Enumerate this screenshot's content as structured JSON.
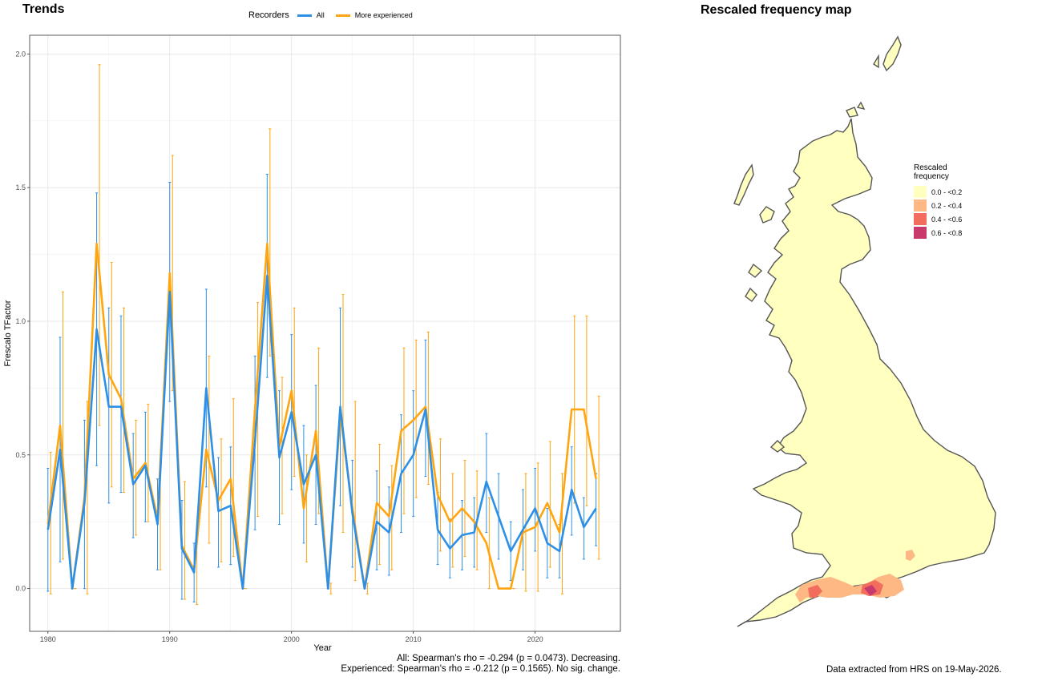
{
  "trends": {
    "title": "Trends",
    "stats_line1": "All: Spearman's rho = -0.294 (p = 0.0473). Decreasing.",
    "stats_line2": "Experienced: Spearman's rho = -0.212 (p = 0.1565). No sig. change."
  },
  "legend": {
    "title": "Recorders",
    "items": [
      {
        "label": "All",
        "color": "#2E8FE6"
      },
      {
        "label": "More experienced",
        "color": "#FFA50F"
      }
    ]
  },
  "chart_data": {
    "type": "line",
    "xlabel": "Year",
    "ylabel": "Frescalo TFactor",
    "xlim": [
      1978.5,
      2027
    ],
    "ylim": [
      -0.16,
      2.07
    ],
    "x_ticks": [
      1980,
      1990,
      2000,
      2010,
      2020
    ],
    "y_ticks": [
      0.0,
      0.5,
      1.0,
      1.5,
      2.0
    ],
    "y_tick_labels": [
      "0.0",
      "0.5",
      "1.0",
      "1.5",
      "2.0"
    ],
    "grid": true,
    "series": [
      {
        "name": "All",
        "color": "#2E8FE6",
        "points": [
          {
            "x": 1980,
            "y": 0.22,
            "lo": -0.01,
            "hi": 0.45
          },
          {
            "x": 1981,
            "y": 0.52,
            "lo": 0.1,
            "hi": 0.94
          },
          {
            "x": 1982,
            "y": 0.0,
            "lo": 0.0,
            "hi": 0.0
          },
          {
            "x": 1983,
            "y": 0.32,
            "lo": 0.0,
            "hi": 0.63
          },
          {
            "x": 1984,
            "y": 0.97,
            "lo": 0.46,
            "hi": 1.48
          },
          {
            "x": 1985,
            "y": 0.68,
            "lo": 0.32,
            "hi": 1.05
          },
          {
            "x": 1986,
            "y": 0.68,
            "lo": 0.36,
            "hi": 1.02
          },
          {
            "x": 1987,
            "y": 0.39,
            "lo": 0.19,
            "hi": 0.58
          },
          {
            "x": 1988,
            "y": 0.46,
            "lo": 0.25,
            "hi": 0.66
          },
          {
            "x": 1989,
            "y": 0.24,
            "lo": 0.07,
            "hi": 0.41
          },
          {
            "x": 1990,
            "y": 1.11,
            "lo": 0.7,
            "hi": 1.52
          },
          {
            "x": 1991,
            "y": 0.15,
            "lo": -0.04,
            "hi": 0.33
          },
          {
            "x": 1992,
            "y": 0.06,
            "lo": -0.05,
            "hi": 0.17
          },
          {
            "x": 1993,
            "y": 0.75,
            "lo": 0.38,
            "hi": 1.12
          },
          {
            "x": 1994,
            "y": 0.29,
            "lo": 0.08,
            "hi": 0.49
          },
          {
            "x": 1995,
            "y": 0.31,
            "lo": 0.09,
            "hi": 0.53
          },
          {
            "x": 1996,
            "y": 0.0,
            "lo": 0.0,
            "hi": 0.0
          },
          {
            "x": 1997,
            "y": 0.55,
            "lo": 0.22,
            "hi": 0.87
          },
          {
            "x": 1998,
            "y": 1.17,
            "lo": 0.79,
            "hi": 1.55
          },
          {
            "x": 1999,
            "y": 0.49,
            "lo": 0.24,
            "hi": 0.74
          },
          {
            "x": 2000,
            "y": 0.66,
            "lo": 0.37,
            "hi": 0.95
          },
          {
            "x": 2001,
            "y": 0.39,
            "lo": 0.17,
            "hi": 0.61
          },
          {
            "x": 2002,
            "y": 0.5,
            "lo": 0.24,
            "hi": 0.76
          },
          {
            "x": 2003,
            "y": 0.0,
            "lo": 0.0,
            "hi": 0.0
          },
          {
            "x": 2004,
            "y": 0.68,
            "lo": 0.31,
            "hi": 1.05
          },
          {
            "x": 2005,
            "y": 0.28,
            "lo": 0.08,
            "hi": 0.48
          },
          {
            "x": 2006,
            "y": 0.0,
            "lo": 0.0,
            "hi": 0.0
          },
          {
            "x": 2007,
            "y": 0.25,
            "lo": 0.07,
            "hi": 0.44
          },
          {
            "x": 2008,
            "y": 0.21,
            "lo": 0.05,
            "hi": 0.38
          },
          {
            "x": 2009,
            "y": 0.43,
            "lo": 0.21,
            "hi": 0.65
          },
          {
            "x": 2010,
            "y": 0.5,
            "lo": 0.27,
            "hi": 0.74
          },
          {
            "x": 2011,
            "y": 0.67,
            "lo": 0.42,
            "hi": 0.93
          },
          {
            "x": 2012,
            "y": 0.22,
            "lo": 0.09,
            "hi": 0.36
          },
          {
            "x": 2013,
            "y": 0.15,
            "lo": 0.04,
            "hi": 0.26
          },
          {
            "x": 2014,
            "y": 0.2,
            "lo": 0.07,
            "hi": 0.33
          },
          {
            "x": 2015,
            "y": 0.21,
            "lo": 0.08,
            "hi": 0.34
          },
          {
            "x": 2016,
            "y": 0.4,
            "lo": 0.21,
            "hi": 0.58
          },
          {
            "x": 2017,
            "y": 0.27,
            "lo": 0.11,
            "hi": 0.43
          },
          {
            "x": 2018,
            "y": 0.14,
            "lo": 0.03,
            "hi": 0.25
          },
          {
            "x": 2019,
            "y": 0.22,
            "lo": 0.07,
            "hi": 0.37
          },
          {
            "x": 2020,
            "y": 0.3,
            "lo": 0.14,
            "hi": 0.45
          },
          {
            "x": 2021,
            "y": 0.17,
            "lo": 0.04,
            "hi": 0.3
          },
          {
            "x": 2022,
            "y": 0.14,
            "lo": 0.04,
            "hi": 0.24
          },
          {
            "x": 2023,
            "y": 0.37,
            "lo": 0.2,
            "hi": 0.53
          },
          {
            "x": 2024,
            "y": 0.23,
            "lo": 0.11,
            "hi": 0.34
          },
          {
            "x": 2025,
            "y": 0.3,
            "lo": 0.16,
            "hi": 0.43
          }
        ]
      },
      {
        "name": "More experienced",
        "color": "#FFA50F",
        "points": [
          {
            "x": 1980,
            "y": 0.24,
            "lo": -0.02,
            "hi": 0.51
          },
          {
            "x": 1981,
            "y": 0.61,
            "lo": 0.11,
            "hi": 1.11
          },
          {
            "x": 1982,
            "y": 0.0,
            "lo": 0.0,
            "hi": 0.0
          },
          {
            "x": 1983,
            "y": 0.34,
            "lo": -0.02,
            "hi": 0.7
          },
          {
            "x": 1984,
            "y": 1.29,
            "lo": 0.61,
            "hi": 1.96
          },
          {
            "x": 1985,
            "y": 0.8,
            "lo": 0.38,
            "hi": 1.22
          },
          {
            "x": 1986,
            "y": 0.71,
            "lo": 0.36,
            "hi": 1.05
          },
          {
            "x": 1987,
            "y": 0.41,
            "lo": 0.2,
            "hi": 0.63
          },
          {
            "x": 1988,
            "y": 0.47,
            "lo": 0.25,
            "hi": 0.69
          },
          {
            "x": 1989,
            "y": 0.26,
            "lo": 0.07,
            "hi": 0.45
          },
          {
            "x": 1990,
            "y": 1.18,
            "lo": 0.74,
            "hi": 1.62
          },
          {
            "x": 1991,
            "y": 0.16,
            "lo": -0.04,
            "hi": 0.4
          },
          {
            "x": 1992,
            "y": 0.07,
            "lo": -0.06,
            "hi": 0.2
          },
          {
            "x": 1993,
            "y": 0.52,
            "lo": 0.17,
            "hi": 0.87
          },
          {
            "x": 1994,
            "y": 0.33,
            "lo": 0.1,
            "hi": 0.56
          },
          {
            "x": 1995,
            "y": 0.41,
            "lo": 0.12,
            "hi": 0.71
          },
          {
            "x": 1996,
            "y": 0.0,
            "lo": 0.0,
            "hi": 0.0
          },
          {
            "x": 1997,
            "y": 0.67,
            "lo": 0.27,
            "hi": 1.07
          },
          {
            "x": 1998,
            "y": 1.29,
            "lo": 0.87,
            "hi": 1.72
          },
          {
            "x": 1999,
            "y": 0.53,
            "lo": 0.28,
            "hi": 0.79
          },
          {
            "x": 2000,
            "y": 0.74,
            "lo": 0.42,
            "hi": 1.05
          },
          {
            "x": 2001,
            "y": 0.3,
            "lo": 0.1,
            "hi": 0.5
          },
          {
            "x": 2002,
            "y": 0.59,
            "lo": 0.28,
            "hi": 0.9
          },
          {
            "x": 2003,
            "y": 0.0,
            "lo": -0.02,
            "hi": 0.02
          },
          {
            "x": 2004,
            "y": 0.65,
            "lo": 0.21,
            "hi": 1.1
          },
          {
            "x": 2005,
            "y": 0.3,
            "lo": 0.03,
            "hi": 0.7
          },
          {
            "x": 2006,
            "y": 0.0,
            "lo": -0.02,
            "hi": 0.02
          },
          {
            "x": 2007,
            "y": 0.32,
            "lo": 0.09,
            "hi": 0.54
          },
          {
            "x": 2008,
            "y": 0.27,
            "lo": 0.07,
            "hi": 0.46
          },
          {
            "x": 2009,
            "y": 0.59,
            "lo": 0.28,
            "hi": 0.9
          },
          {
            "x": 2010,
            "y": 0.63,
            "lo": 0.34,
            "hi": 0.93
          },
          {
            "x": 2011,
            "y": 0.68,
            "lo": 0.39,
            "hi": 0.96
          },
          {
            "x": 2012,
            "y": 0.35,
            "lo": 0.14,
            "hi": 0.56
          },
          {
            "x": 2013,
            "y": 0.25,
            "lo": 0.08,
            "hi": 0.43
          },
          {
            "x": 2014,
            "y": 0.3,
            "lo": 0.12,
            "hi": 0.48
          },
          {
            "x": 2015,
            "y": 0.25,
            "lo": 0.07,
            "hi": 0.44
          },
          {
            "x": 2016,
            "y": 0.17,
            "lo": 0.0,
            "hi": 0.34
          },
          {
            "x": 2017,
            "y": 0.0,
            "lo": 0.0,
            "hi": 0.0
          },
          {
            "x": 2018,
            "y": 0.0,
            "lo": 0.0,
            "hi": 0.0
          },
          {
            "x": 2019,
            "y": 0.21,
            "lo": -0.01,
            "hi": 0.43
          },
          {
            "x": 2020,
            "y": 0.23,
            "lo": -0.01,
            "hi": 0.47
          },
          {
            "x": 2021,
            "y": 0.32,
            "lo": 0.08,
            "hi": 0.55
          },
          {
            "x": 2022,
            "y": 0.21,
            "lo": -0.02,
            "hi": 0.43
          },
          {
            "x": 2023,
            "y": 0.67,
            "lo": 0.32,
            "hi": 1.02
          },
          {
            "x": 2024,
            "y": 0.67,
            "lo": 0.31,
            "hi": 1.02
          },
          {
            "x": 2025,
            "y": 0.41,
            "lo": 0.11,
            "hi": 0.72
          }
        ]
      }
    ]
  },
  "map": {
    "title": "Rescaled frequency map",
    "legend_title": "Rescaled frequency",
    "legend_items": [
      {
        "label": "0.0 - <0.2",
        "color": "#FFFFC0"
      },
      {
        "label": "0.2 - <0.4",
        "color": "#FDB884"
      },
      {
        "label": "0.4 - <0.6",
        "color": "#F26D5E"
      },
      {
        "label": "0.6 - <0.8",
        "color": "#C83A6C"
      }
    ],
    "land_color": "#FFFFC0",
    "coast_color": "#555555",
    "credit": "Data extracted from HRS on 19-May-2026."
  }
}
